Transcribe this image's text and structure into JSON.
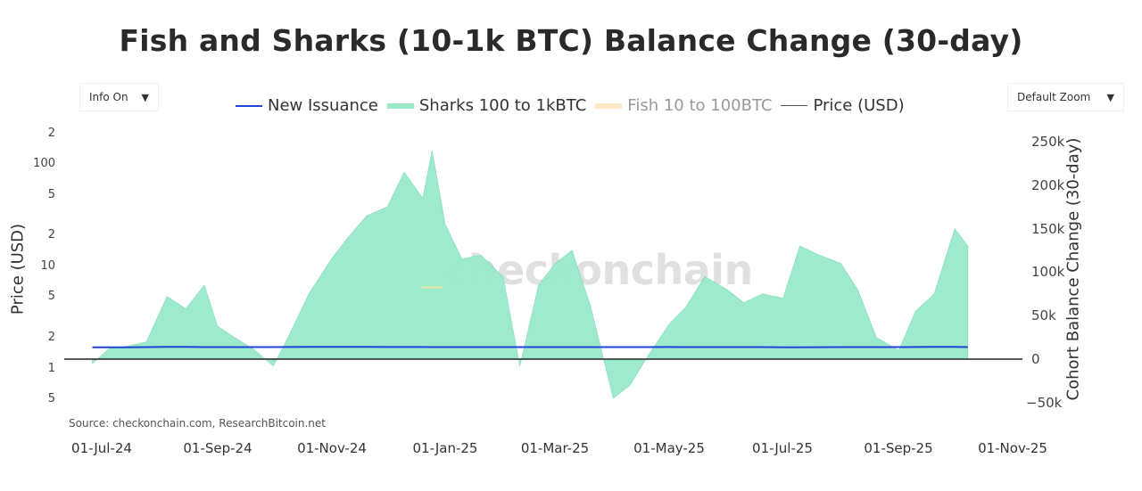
{
  "title": "Fish and Sharks (10-1k BTC) Balance Change (30-day)",
  "controls": {
    "info_dropdown": {
      "label": "Info On",
      "arrow": "▼"
    },
    "zoom_dropdown": {
      "label": "Default Zoom",
      "arrow": "▼"
    }
  },
  "legend": [
    {
      "label": "New Issuance",
      "color": "#1f44d6",
      "style": "line"
    },
    {
      "label": "Sharks 100 to 1kBTC",
      "color": "#99e9c9",
      "style": "area"
    },
    {
      "label": "Fish 10 to 100BTC",
      "color": "#fbe8c4",
      "style": "area",
      "hidden": true
    },
    {
      "label": "Price (USD)",
      "color": "#555555",
      "style": "line"
    }
  ],
  "axes": {
    "left_label": "Price (USD)",
    "left_ticks": [
      "2",
      "100",
      "5",
      "2",
      "10",
      "5",
      "2",
      "1",
      "5"
    ],
    "right_label": "Cohort Balance Change (30-day)",
    "right_ticks": [
      "250k",
      "200k",
      "150k",
      "100k",
      "50k",
      "0",
      "−50k"
    ],
    "x_ticks": [
      "01-Jul-24",
      "01-Sep-24",
      "01-Nov-24",
      "01-Jan-25",
      "01-Mar-25",
      "01-May-25",
      "01-Jul-25",
      "01-Sep-25",
      "01-Nov-25"
    ]
  },
  "source": "Source: checkonchain.com, ResearchBitcoin.net",
  "watermark": "checkonchain",
  "chart_data": {
    "type": "area",
    "title": "Fish and Sharks (10-1k BTC) Balance Change (30-day)",
    "xlabel": "",
    "ylabel_left": "Price (USD)",
    "ylabel_right": "Cohort Balance Change (30-day)",
    "ylim_right": [
      -50000,
      250000
    ],
    "x_range": [
      "2024-06-26",
      "2025-10-08"
    ],
    "legend_position": "top",
    "grid": false,
    "categories": [
      "2024-06-26",
      "2024-07-05",
      "2024-07-15",
      "2024-07-25",
      "2024-08-05",
      "2024-08-15",
      "2024-08-25",
      "2024-09-01",
      "2024-09-10",
      "2024-09-20",
      "2024-10-01",
      "2024-10-10",
      "2024-10-20",
      "2024-11-01",
      "2024-11-10",
      "2024-11-20",
      "2024-12-01",
      "2024-12-10",
      "2024-12-20",
      "2024-12-25",
      "2025-01-01",
      "2025-01-10",
      "2025-01-20",
      "2025-02-01",
      "2025-02-10",
      "2025-02-20",
      "2025-03-01",
      "2025-03-10",
      "2025-03-20",
      "2025-04-01",
      "2025-04-10",
      "2025-04-20",
      "2025-05-01",
      "2025-05-10",
      "2025-05-20",
      "2025-06-01",
      "2025-06-10",
      "2025-06-20",
      "2025-07-01",
      "2025-07-10",
      "2025-07-20",
      "2025-08-01",
      "2025-08-10",
      "2025-08-20",
      "2025-09-01",
      "2025-09-10",
      "2025-09-20",
      "2025-10-01",
      "2025-10-08"
    ],
    "series": [
      {
        "name": "Sharks 100 to 1kBTC",
        "values": [
          -5000,
          12000,
          15000,
          20000,
          72000,
          58000,
          85000,
          38000,
          25000,
          12000,
          -8000,
          30000,
          75000,
          115000,
          140000,
          165000,
          175000,
          215000,
          185000,
          240000,
          155000,
          115000,
          120000,
          95000,
          -8000,
          85000,
          110000,
          125000,
          60000,
          -45000,
          -30000,
          5000,
          40000,
          60000,
          95000,
          80000,
          65000,
          75000,
          70000,
          130000,
          120000,
          110000,
          80000,
          25000,
          10000,
          55000,
          75000,
          150000,
          130000
        ]
      },
      {
        "name": "New Issuance",
        "values": [
          13500,
          13500,
          13500,
          13800,
          14000,
          14000,
          13800,
          13800,
          13800,
          13800,
          13800,
          13900,
          14000,
          14000,
          14000,
          14000,
          13900,
          13900,
          13900,
          13800,
          13800,
          13800,
          13800,
          13800,
          13800,
          13800,
          13800,
          13800,
          13800,
          13800,
          13800,
          13800,
          13900,
          13800,
          13800,
          13800,
          13800,
          13800,
          13600,
          13600,
          13700,
          13800,
          13800,
          13800,
          13800,
          13900,
          14000,
          14000,
          13800
        ]
      },
      {
        "name": "Fish 10 to 100BTC",
        "values": [],
        "visible": false
      },
      {
        "name": "Price (USD)",
        "values": [],
        "visible": true
      }
    ]
  }
}
